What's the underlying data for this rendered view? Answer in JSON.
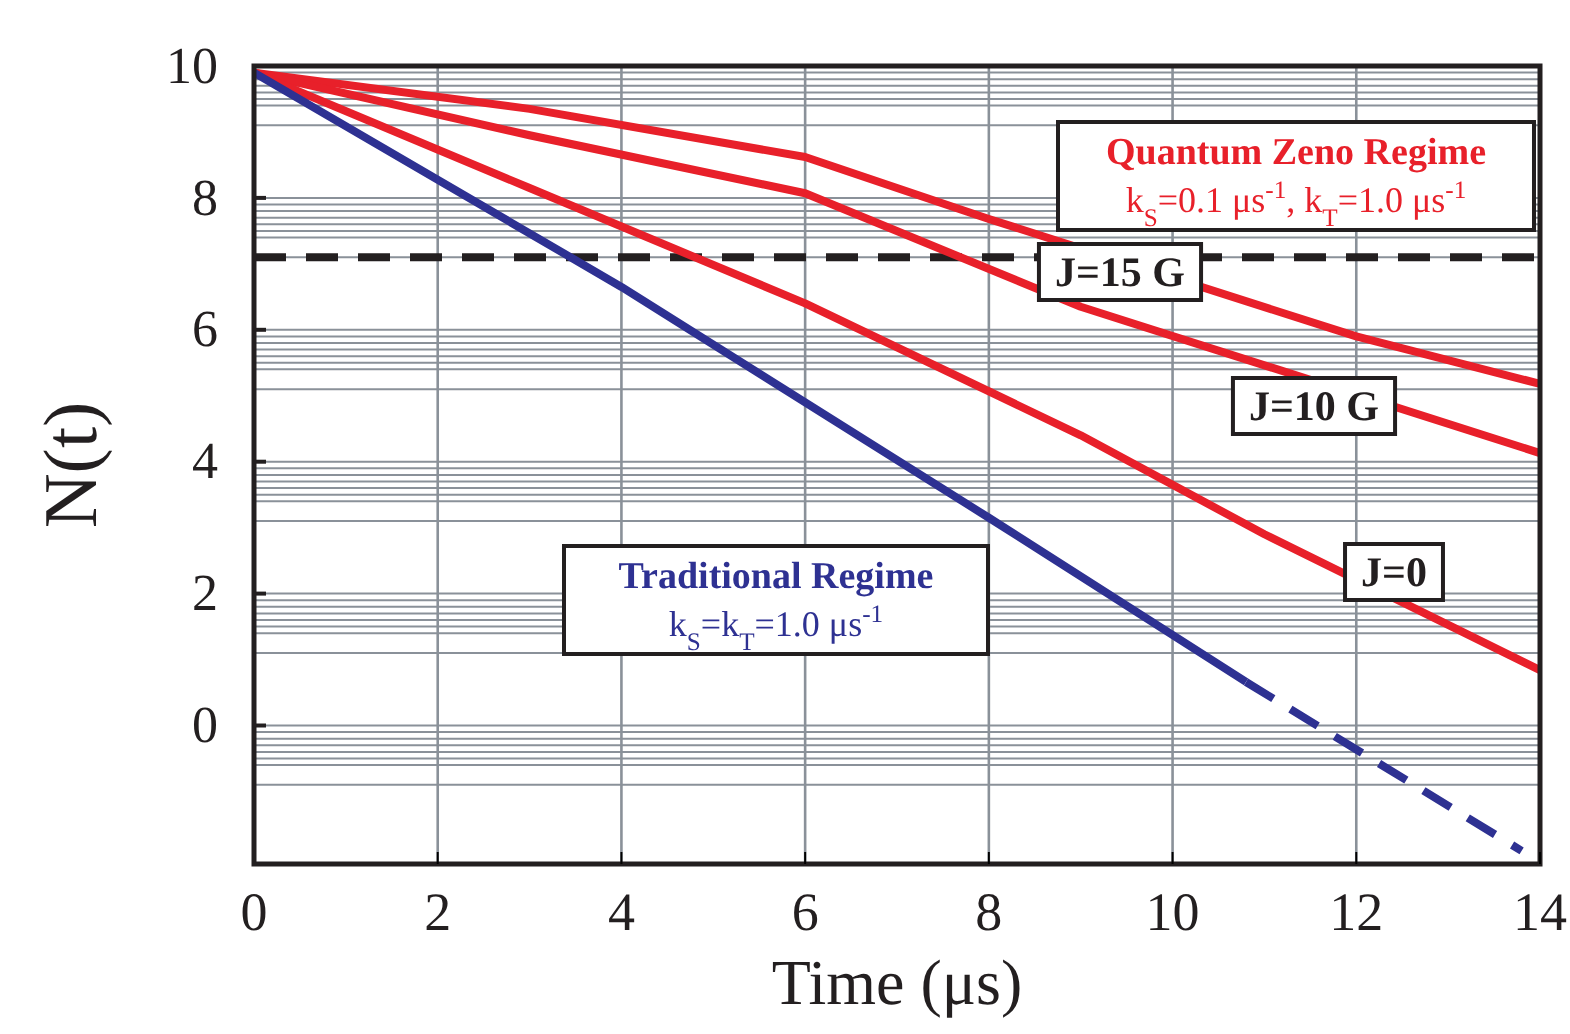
{
  "chart_data": {
    "type": "line",
    "xlabel": "Time (μs)",
    "ylabel": "N(t)",
    "xlim": [
      0,
      14
    ],
    "xticks": [
      0,
      2,
      4,
      6,
      8,
      10,
      12,
      14
    ],
    "ylim": [
      -2.1,
      10
    ],
    "yticks": [
      10,
      {
        "value": 9.9,
        "label": null
      },
      {
        "value": 9.8,
        "label": null
      },
      {
        "value": 9.7,
        "label": null
      },
      {
        "value": 9.6,
        "label": null
      },
      {
        "value": 9.5,
        "label": null
      },
      {
        "value": 9.4,
        "label": null
      },
      {
        "value": 9.1,
        "label": null
      },
      8,
      {
        "value": 7.9,
        "label": null
      },
      {
        "value": 7.8,
        "label": null
      },
      {
        "value": 7.7,
        "label": null
      },
      {
        "value": 7.6,
        "label": null
      },
      {
        "value": 7.5,
        "label": null
      },
      {
        "value": 7.4,
        "label": null
      },
      {
        "value": 7.1,
        "label": null
      },
      6,
      {
        "value": 5.9,
        "label": null
      },
      {
        "value": 5.8,
        "label": null
      },
      {
        "value": 5.7,
        "label": null
      },
      {
        "value": 5.6,
        "label": null
      },
      {
        "value": 5.5,
        "label": null
      },
      {
        "value": 5.4,
        "label": null
      },
      {
        "value": 5.1,
        "label": null
      },
      4,
      {
        "value": 3.9,
        "label": null
      },
      {
        "value": 3.8,
        "label": null
      },
      {
        "value": 3.7,
        "label": null
      },
      {
        "value": 3.6,
        "label": null
      },
      {
        "value": 3.5,
        "label": null
      },
      {
        "value": 3.4,
        "label": null
      },
      {
        "value": 3.1,
        "label": null
      },
      2,
      {
        "value": 1.9,
        "label": null
      },
      {
        "value": 1.8,
        "label": null
      },
      {
        "value": 1.7,
        "label": null
      },
      {
        "value": 1.6,
        "label": null
      },
      {
        "value": 1.5,
        "label": null
      },
      {
        "value": 1.4,
        "label": null
      },
      {
        "value": 1.1,
        "label": null
      },
      0,
      {
        "value": -0.1,
        "label": null
      },
      {
        "value": -0.2,
        "label": null
      },
      {
        "value": -0.3,
        "label": null
      },
      {
        "value": -0.4,
        "label": null
      },
      {
        "value": -0.5,
        "label": null
      },
      {
        "value": -0.6,
        "label": null
      },
      {
        "value": -0.9,
        "label": null
      }
    ],
    "grid": true,
    "marker": "none",
    "series": [
      {
        "color": "#e8202a",
        "line_style": "solid",
        "x": [
          0,
          3,
          6,
          8,
          12,
          14
        ],
        "values": [
          9.9,
          9.35,
          8.62,
          7.68,
          5.9,
          5.18
        ]
      },
      {
        "color": "#e8202a",
        "line_style": "solid",
        "x": [
          0,
          3,
          6,
          9,
          14
        ],
        "values": [
          9.9,
          8.95,
          8.07,
          6.35,
          4.13
        ]
      },
      {
        "color": "#e8202a",
        "line_style": "solid",
        "x": [
          0,
          3,
          6,
          9,
          11,
          14
        ],
        "values": [
          9.9,
          8.15,
          6.4,
          4.4,
          2.9,
          0.84
        ]
      },
      {
        "color": "#2e3192",
        "line_style": "solid",
        "x": [
          0,
          4,
          8,
          10.8
        ],
        "values": [
          9.9,
          6.65,
          3.15,
          0.66
        ]
      },
      {
        "color": "#2e3192",
        "line_style": "dashed",
        "x": [
          10.8,
          13.8
        ],
        "values": [
          0.66,
          -1.9
        ]
      }
    ],
    "ref_lines": [
      {
        "axis": "y",
        "value": 7.1,
        "color": "#231f20",
        "line_style": "dashed"
      }
    ],
    "annotations": [
      "Quantum Zeno Regime",
      "k$_{S}$=0.1 μs$^{-1}$, k$_{T}$=1.0 μs$^{-1}$",
      "Traditional  Regime",
      "k$_{S}$=k$_{T}$=1.0 μs$^{-1}$",
      "J=15 G",
      "J=10 G",
      "J=0"
    ]
  }
}
